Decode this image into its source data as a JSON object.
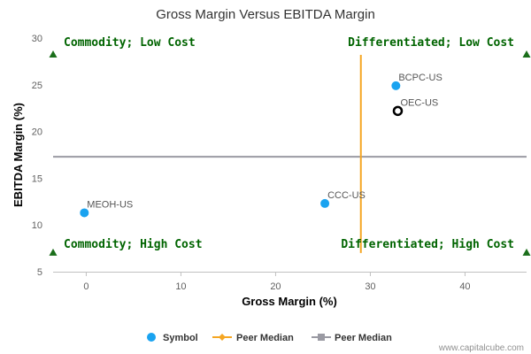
{
  "chart_data": {
    "type": "scatter",
    "title": "Gross Margin Versus EBITDA Margin",
    "xlabel": "Gross Margin (%)",
    "ylabel": "EBITDA Margin (%)",
    "xlim": [
      -3.5,
      46.5
    ],
    "ylim": [
      5,
      30
    ],
    "xticks": [
      0,
      10,
      20,
      30,
      40
    ],
    "yticks": [
      5,
      10,
      15,
      20,
      25,
      30
    ],
    "grid": false,
    "legend_position": "bottom",
    "series": [
      {
        "name": "Symbol",
        "color": "#1aa3f0",
        "points": [
          {
            "label": "BCPC-US",
            "x": 32.7,
            "y": 24.9,
            "style": "filled"
          },
          {
            "label": "OEC-US",
            "x": 32.9,
            "y": 22.2,
            "style": "hollow"
          },
          {
            "label": "CCC-US",
            "x": 25.2,
            "y": 12.3,
            "style": "filled"
          },
          {
            "label": "MEOH-US",
            "x": -0.2,
            "y": 11.3,
            "style": "filled"
          }
        ]
      },
      {
        "name": "Peer Median",
        "orientation": "vertical",
        "color": "#f5a623",
        "x": 29.0,
        "y_range": [
          7.0,
          28.2
        ]
      },
      {
        "name": "Peer Median",
        "orientation": "horizontal",
        "color": "#9a9aa3",
        "y": 17.3,
        "x_range": [
          -3.5,
          46.5
        ]
      }
    ],
    "quadrants": [
      {
        "label": "Commodity; Low Cost",
        "position": "top-left"
      },
      {
        "label": "Differentiated; Low Cost",
        "position": "top-right"
      },
      {
        "label": "Commodity; High Cost",
        "position": "bottom-left"
      },
      {
        "label": "Differentiated; High Cost",
        "position": "bottom-right"
      }
    ],
    "quadrant_marker_color": "#1a6e1a",
    "quadrant_marker_y": [
      28.2,
      7.0
    ]
  },
  "credit": "www.capitalcube.com"
}
